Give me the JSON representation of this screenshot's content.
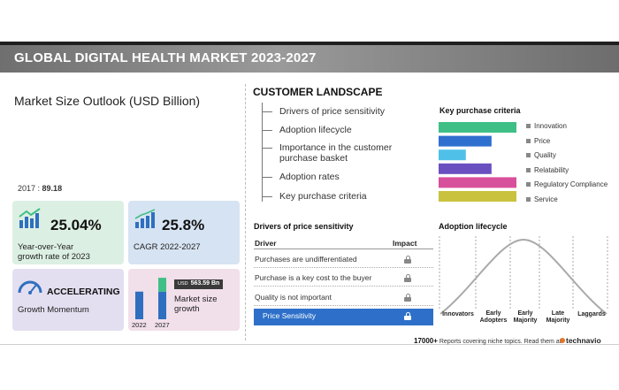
{
  "header": {
    "title": "GLOBAL DIGITAL HEALTH MARKET 2023-2027"
  },
  "market_size": {
    "title": "Market Size Outlook (USD Billion)",
    "base_year": "2017 :",
    "base_value": "89.18",
    "yoy_value": "25.04%",
    "yoy_label_1": "Year-over-Year",
    "yoy_label_2": "growth rate of 2023",
    "cagr_value": "25.8%",
    "cagr_label": "CAGR 2022-2027",
    "momentum_value": "ACCELERATING",
    "momentum_label": "Growth Momentum",
    "market_growth_label_1": "Market size",
    "market_growth_label_2": "growth",
    "badge_prefix": "USD",
    "badge_value": "563.59 Bn",
    "colors": {
      "green_card": "#dcefe3",
      "blue_card": "#d6e3f2",
      "purple_card": "#e3dff0",
      "pink_card": "#f1dfea",
      "icon": "#2f6fbf"
    }
  },
  "customer_landscape": {
    "title": "CUSTOMER LANDSCAPE",
    "items": [
      "Drivers of price sensitivity",
      "Adoption lifecycle",
      "Importance in the customer purchase basket",
      "Adoption rates",
      "Key purchase criteria"
    ]
  },
  "drivers_table": {
    "title": "Drivers of price sensitivity",
    "header_driver": "Driver",
    "header_impact": "Impact",
    "rows": [
      "Purchases are undifferentiated",
      "Purchase is a key cost to the buyer",
      "Quality is not important",
      "Price Sensitivity"
    ],
    "icon": "lock-icon",
    "highlight_color": "#2e70c9"
  },
  "adoption": {
    "title": "Adoption lifecycle",
    "stages": [
      "Innovators",
      "Early Adopters",
      "Early Majority",
      "Late Majority",
      "Laggards"
    ],
    "curve_color": "#a9a9a9"
  },
  "chart_data": [
    {
      "type": "bar",
      "title": "Key purchase criteria",
      "categories": [
        "Innovation",
        "Price",
        "Quality",
        "Relatability",
        "Regulatory Compliance",
        "Service"
      ],
      "values": [
        100,
        68,
        35,
        68,
        100,
        100
      ],
      "colors": [
        "#3fbf86",
        "#2f6fcf",
        "#4fc1e9",
        "#6a4fc1",
        "#d84f9b",
        "#c9c23e"
      ],
      "xlabel": "",
      "ylabel": ""
    },
    {
      "type": "bar",
      "title": "",
      "categories": [
        "2022",
        "2027"
      ],
      "series": [
        {
          "values": [
            1,
            1
          ],
          "color": "#2f6fbf"
        },
        {
          "values": [
            0,
            0.5
          ],
          "color": "#3fbf86"
        }
      ],
      "ylim": [
        0,
        1.6
      ]
    }
  ],
  "footer": {
    "count": "17000+",
    "text": "Reports covering niche topics. Read them at",
    "brand": "technavio",
    "brand_color": "#e2752b"
  }
}
